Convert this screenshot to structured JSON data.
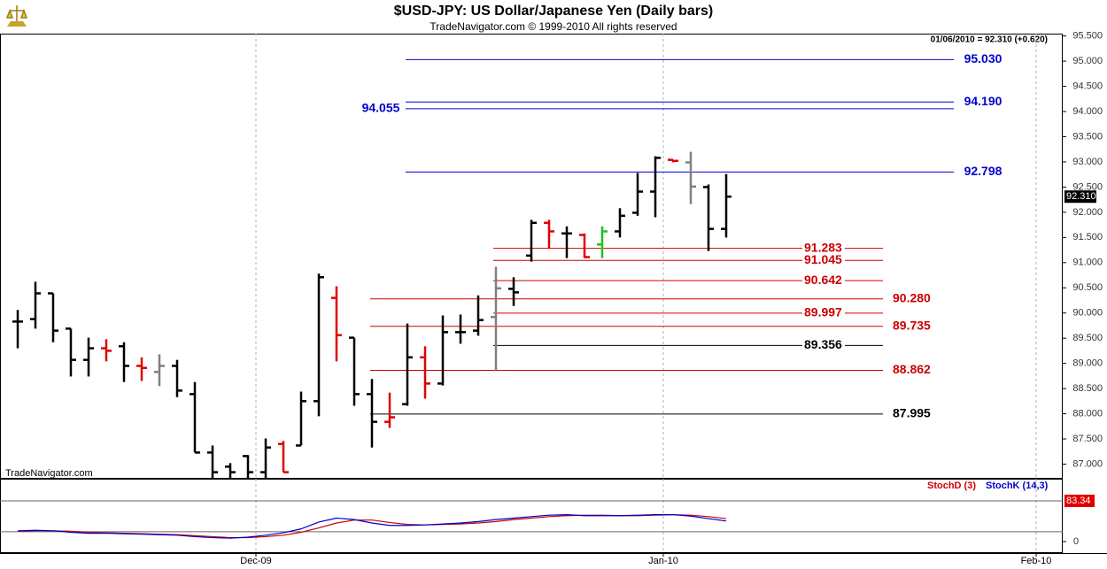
{
  "header": {
    "title": "$USD-JPY:  US Dollar/Japanese Yen  (Daily bars)",
    "subtitle": "TradeNavigator.com © 1999-2010 All rights reserved",
    "info": "01/06/2010 = 92.310 (+0.620)",
    "watermark": "TradeNavigator.com"
  },
  "chart_data": [
    {
      "type": "ohlc",
      "xlim": [
        -1,
        59
      ],
      "xticks": [
        {
          "value": 13.45,
          "label": "Dec-09"
        },
        {
          "value": 36.45,
          "label": "Jan-10"
        },
        {
          "value": 57.5,
          "label": "Feb-10"
        }
      ],
      "ylim": [
        86.71,
        95.546
      ],
      "yticks": [
        {
          "value": 87,
          "label": "87.000"
        },
        {
          "value": 87.5,
          "label": "87.500"
        },
        {
          "value": 88,
          "label": "88.000"
        },
        {
          "value": 88.5,
          "label": "88.500"
        },
        {
          "value": 89,
          "label": "89.000"
        },
        {
          "value": 89.5,
          "label": "89.500"
        },
        {
          "value": 90,
          "label": "90.000"
        },
        {
          "value": 90.5,
          "label": "90.500"
        },
        {
          "value": 91,
          "label": "91.000"
        },
        {
          "value": 91.5,
          "label": "91.500"
        },
        {
          "value": 92,
          "label": "92.000"
        },
        {
          "value": 92.5,
          "label": "92.500"
        },
        {
          "value": 93,
          "label": "93.000"
        },
        {
          "value": 93.5,
          "label": "93.500"
        },
        {
          "value": 94,
          "label": "94.000"
        },
        {
          "value": 94.5,
          "label": "94.500"
        },
        {
          "value": 95,
          "label": "95.000"
        },
        {
          "value": 95.5,
          "label": "95.500"
        }
      ],
      "open": [
        89.83,
        89.88,
        90.39,
        89.69,
        89.07,
        89.3,
        89.34,
        88.95,
        88.83,
        88.95,
        88.39,
        87.23,
        86.95,
        87.16,
        86.84,
        87.4,
        87.37,
        88.25,
        90.3,
        89.51,
        88.39,
        87.84,
        88.19,
        89.12,
        88.6,
        89.62,
        89.65,
        89.92,
        90.48,
        91.14,
        91.79,
        91.58,
        91.55,
        91.36,
        91.62,
        91.99,
        92.41,
        93.04,
        92.99,
        92.5,
        91.67
      ],
      "high": [
        90.06,
        90.62,
        90.39,
        89.69,
        89.51,
        89.48,
        89.42,
        89.12,
        89.18,
        89.07,
        88.63,
        87.37,
        87.02,
        87.18,
        87.51,
        87.46,
        88.44,
        90.78,
        90.53,
        89.51,
        88.69,
        88.42,
        89.79,
        89.34,
        89.95,
        89.97,
        90.35,
        90.92,
        90.71,
        91.85,
        91.85,
        91.72,
        91.58,
        91.72,
        92.08,
        92.78,
        93.11,
        93.04,
        93.2,
        92.55,
        92.76
      ],
      "low": [
        89.3,
        89.69,
        89.42,
        88.74,
        88.74,
        89.04,
        88.63,
        88.65,
        88.55,
        88.33,
        87.23,
        86.49,
        86.49,
        86.49,
        86.49,
        86.84,
        87.37,
        87.95,
        89.04,
        88.16,
        87.33,
        87.72,
        88.16,
        88.3,
        88.56,
        89.39,
        89.55,
        88.86,
        90.14,
        91.02,
        91.29,
        91.09,
        91.09,
        91.09,
        91.5,
        91.93,
        91.9,
        92.99,
        92.16,
        91.23,
        91.5
      ],
      "close": [
        89.83,
        90.39,
        89.65,
        89.07,
        89.3,
        89.25,
        88.95,
        88.91,
        88.95,
        88.46,
        87.23,
        86.84,
        86.84,
        86.84,
        87.33,
        86.84,
        88.25,
        90.71,
        89.56,
        88.39,
        87.84,
        87.93,
        89.12,
        88.6,
        89.62,
        89.62,
        89.86,
        90.49,
        90.41,
        91.79,
        91.62,
        91.58,
        91.11,
        91.62,
        91.93,
        92.41,
        93.08,
        93.02,
        92.51,
        91.67,
        92.31
      ],
      "bar_colors": [
        "#000000",
        "#000000",
        "#000000",
        "#000000",
        "#000000",
        "#e00000",
        "#000000",
        "#e00000",
        "#808080",
        "#000000",
        "#000000",
        "#000000",
        "#000000",
        "#000000",
        "#000000",
        "#e00000",
        "#000000",
        "#000000",
        "#e00000",
        "#000000",
        "#000000",
        "#e00000",
        "#000000",
        "#e00000",
        "#000000",
        "#000000",
        "#000000",
        "#808080",
        "#000000",
        "#000000",
        "#e00000",
        "#000000",
        "#e00000",
        "#20c020",
        "#000000",
        "#000000",
        "#000000",
        "#e00000",
        "#808080",
        "#000000",
        "#000000"
      ],
      "last": {
        "value": 92.31,
        "label": "92.310"
      },
      "levels": [
        {
          "value": 95.03,
          "label": "95.030",
          "color": "#0000cc",
          "start": 21.9,
          "end": 52.85,
          "label_at": "right"
        },
        {
          "value": 94.19,
          "label": "94.190",
          "color": "#0000cc",
          "start": 21.9,
          "end": 52.85,
          "label_at": "right"
        },
        {
          "value": 94.055,
          "label": "94.055",
          "color": "#0000cc",
          "start": 21.9,
          "end": 52.85,
          "label_at": "left"
        },
        {
          "value": 92.798,
          "label": "92.798",
          "color": "#0000cc",
          "start": 21.9,
          "end": 52.85,
          "label_at": "right"
        },
        {
          "value": 91.283,
          "label": "91.283",
          "color": "#cc0000",
          "start": 26.85,
          "end": 48.85,
          "label_at": "inside"
        },
        {
          "value": 91.045,
          "label": "91.045",
          "color": "#cc0000",
          "start": 26.85,
          "end": 48.85,
          "label_at": "inside"
        },
        {
          "value": 90.642,
          "label": "90.642",
          "color": "#cc0000",
          "start": 26.85,
          "end": 48.85,
          "label_at": "inside"
        },
        {
          "value": 90.28,
          "label": "90.280",
          "color": "#cc0000",
          "start": 19.9,
          "end": 48.85,
          "label_at": "right"
        },
        {
          "value": 89.997,
          "label": "89.997",
          "color": "#cc0000",
          "start": 26.85,
          "end": 48.85,
          "label_at": "inside"
        },
        {
          "value": 89.735,
          "label": "89.735",
          "color": "#cc0000",
          "start": 19.9,
          "end": 48.85,
          "label_at": "right"
        },
        {
          "value": 89.356,
          "label": "89.356",
          "color": "#000000",
          "start": 26.85,
          "end": 48.85,
          "label_at": "inside"
        },
        {
          "value": 88.862,
          "label": "88.862",
          "color": "#cc0000",
          "start": 19.9,
          "end": 48.85,
          "label_at": "right"
        },
        {
          "value": 87.995,
          "label": "87.995",
          "color": "#000000",
          "start": 19.9,
          "end": 48.85,
          "label_at": "right"
        }
      ]
    },
    {
      "type": "line",
      "xlim": [
        -1,
        59
      ],
      "ylim": [
        -23.6,
        128.6
      ],
      "yticks": [
        {
          "value": 83.34,
          "label": "83.34"
        },
        0
      ],
      "guide_lines": [
        83.34,
        20
      ],
      "series": [
        {
          "name": "StochD (3)",
          "color": "#cc0000",
          "values": [
            21,
            22,
            22,
            21,
            19,
            18,
            17,
            16,
            15,
            14,
            12,
            10,
            8,
            8,
            10,
            13,
            19,
            28,
            38,
            44,
            44,
            39,
            35,
            34,
            35,
            36,
            38,
            41,
            45,
            48,
            51,
            53,
            54,
            54,
            53,
            53,
            54,
            55,
            54,
            51,
            47
          ]
        },
        {
          "name": "StochK (14,3)",
          "color": "#0000cc",
          "values": [
            22,
            23,
            22,
            19,
            17,
            17,
            16,
            15,
            14,
            13,
            10,
            8,
            7,
            9,
            13,
            18,
            26,
            40,
            48,
            45,
            38,
            33,
            33,
            34,
            36,
            38,
            41,
            45,
            48,
            51,
            54,
            55,
            53,
            53,
            53,
            54,
            55,
            55,
            52,
            47,
            42
          ]
        }
      ]
    }
  ]
}
